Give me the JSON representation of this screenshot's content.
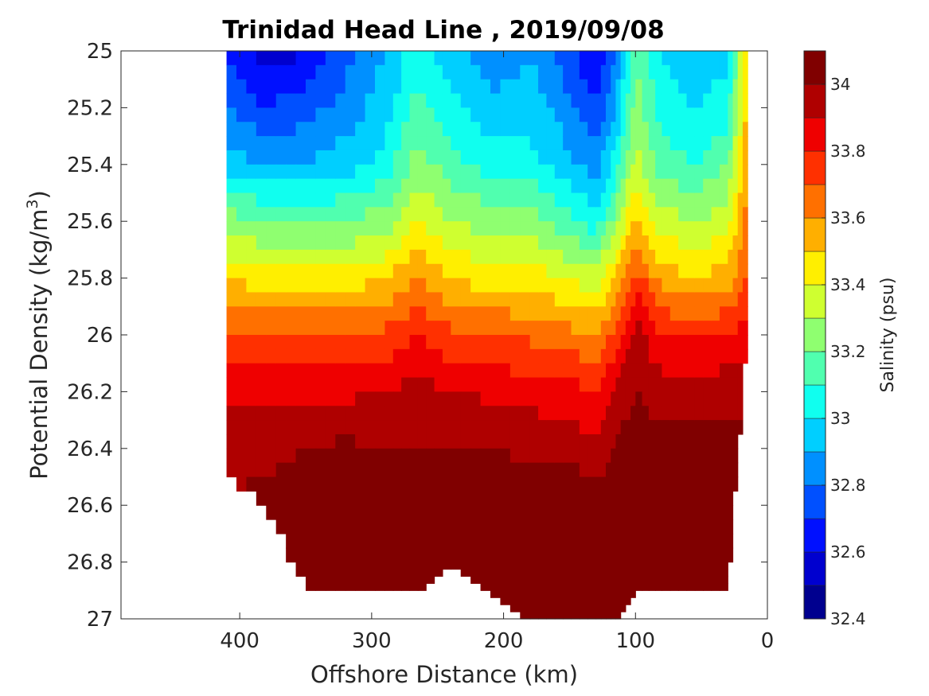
{
  "chart_data": {
    "type": "contourf",
    "title": "Trinidad Head Line , 2019/09/08",
    "xlabel": "Offshore Distance (km)",
    "ylabel": "Potential Density (kg/m",
    "ylabel_sup": "3",
    "ylabel_end": ")",
    "xlim": [
      490,
      0
    ],
    "x_reversed": true,
    "x_ticks": [
      400,
      300,
      200,
      100,
      0
    ],
    "ylim": [
      25,
      27
    ],
    "y_reversed": true,
    "y_ticks": [
      25,
      25.2,
      25.4,
      25.6,
      25.8,
      26,
      26.2,
      26.4,
      26.6,
      26.8,
      27
    ],
    "y_tick_labels": [
      "25",
      "25.2",
      "25.4",
      "25.6",
      "25.8",
      "26",
      "26.2",
      "26.4",
      "26.6",
      "26.8",
      "27"
    ],
    "colorbar": {
      "label": "Salinity (psu)",
      "range": [
        32.4,
        34.1
      ],
      "levels": [
        32.4,
        32.5,
        32.6,
        32.7,
        32.8,
        32.9,
        33.0,
        33.1,
        33.2,
        33.3,
        33.4,
        33.5,
        33.6,
        33.7,
        33.8,
        33.9,
        34.0,
        34.1
      ],
      "ticks": [
        32.4,
        32.6,
        32.8,
        33,
        33.2,
        33.4,
        33.6,
        33.8,
        34
      ],
      "tick_labels": [
        "32.4",
        "32.6",
        "32.8",
        "33",
        "33.2",
        "33.4",
        "33.6",
        "33.8",
        "34"
      ],
      "colors": [
        "#00008f",
        "#0000cf",
        "#0010ff",
        "#0050ff",
        "#0090ff",
        "#00cfff",
        "#10ffef",
        "#50ffaf",
        "#8fff70",
        "#cfff30",
        "#ffef00",
        "#ffaf00",
        "#ff7000",
        "#ff3000",
        "#ef0000",
        "#af0000",
        "#800000"
      ]
    },
    "x": [
      410,
      380,
      350,
      320,
      290,
      265,
      240,
      210,
      180,
      155,
      130,
      115,
      100,
      80,
      55,
      30,
      15
    ],
    "sigma": [
      25.0,
      25.2,
      25.4,
      25.6,
      25.8,
      26.0,
      26.2,
      26.4,
      26.6,
      26.8,
      26.9,
      27.0
    ],
    "depth_limit_sigma": [
      26.5,
      26.6,
      26.9,
      26.9,
      26.9,
      26.9,
      26.8,
      26.9,
      27.0,
      27.0,
      27.0,
      27.0,
      26.9,
      26.9,
      26.9,
      26.9,
      26.0
    ],
    "salinity": [
      [
        32.7,
        32.55,
        32.6,
        32.75,
        32.9,
        33.05,
        32.95,
        32.8,
        32.9,
        32.75,
        32.6,
        32.8,
        33.2,
        33.0,
        32.95,
        32.95,
        33.5
      ],
      [
        32.8,
        32.7,
        32.75,
        32.85,
        32.95,
        33.15,
        33.05,
        32.95,
        32.95,
        32.85,
        32.7,
        32.9,
        33.25,
        33.05,
        33.0,
        33.05,
        33.55
      ],
      [
        32.95,
        32.9,
        32.9,
        32.95,
        33.05,
        33.25,
        33.15,
        33.05,
        33.05,
        32.95,
        32.85,
        33.05,
        33.35,
        33.15,
        33.1,
        33.2,
        33.6
      ],
      [
        33.25,
        33.2,
        33.2,
        33.2,
        33.25,
        33.4,
        33.3,
        33.25,
        33.25,
        33.15,
        33.05,
        33.25,
        33.55,
        33.35,
        33.3,
        33.35,
        33.65
      ],
      [
        33.5,
        33.45,
        33.45,
        33.45,
        33.5,
        33.6,
        33.5,
        33.45,
        33.45,
        33.4,
        33.35,
        33.5,
        33.75,
        33.55,
        33.5,
        33.55,
        33.7
      ],
      [
        33.7,
        33.7,
        33.7,
        33.7,
        33.72,
        33.8,
        33.72,
        33.7,
        33.68,
        33.65,
        33.6,
        33.75,
        33.95,
        33.8,
        33.78,
        33.8,
        33.85
      ],
      [
        33.88,
        33.88,
        33.88,
        33.88,
        33.9,
        33.95,
        33.9,
        33.88,
        33.86,
        33.84,
        33.8,
        33.92,
        34.0,
        33.95,
        33.95,
        33.97,
        33.97
      ],
      [
        33.98,
        33.98,
        34.0,
        34.02,
        34.0,
        34.0,
        34.0,
        34.0,
        33.98,
        33.96,
        33.94,
        34.02,
        34.05,
        34.05,
        34.05,
        34.05,
        34.05
      ],
      [
        34.0,
        34.02,
        34.04,
        34.05,
        34.06,
        34.07,
        34.05,
        34.06,
        34.08,
        34.1,
        34.05,
        34.05,
        34.1,
        34.1,
        34.1,
        34.12,
        34.12
      ],
      [
        34.02,
        34.04,
        34.06,
        34.08,
        34.1,
        34.1,
        34.08,
        34.1,
        34.12,
        34.12,
        34.1,
        34.08,
        34.12,
        34.12,
        34.12,
        34.14,
        34.14
      ],
      [
        34.05,
        34.06,
        34.07,
        34.09,
        34.11,
        34.12,
        34.1,
        34.12,
        34.14,
        34.15,
        34.12,
        34.1,
        34.14,
        34.14,
        34.14,
        34.15,
        34.15
      ],
      [
        34.08,
        34.08,
        34.08,
        34.1,
        34.12,
        34.13,
        34.12,
        34.14,
        34.18,
        34.18,
        34.18,
        34.16,
        34.16,
        34.16,
        34.16,
        34.16,
        34.16
      ]
    ]
  }
}
